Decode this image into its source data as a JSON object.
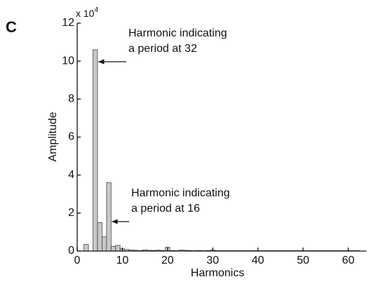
{
  "chart_data": {
    "type": "bar",
    "panel_label": "C",
    "y_multiplier": "x 10",
    "y_multiplier_exponent": "4",
    "x_label": "Harmonics",
    "y_label": "Amplitude",
    "x": [
      1,
      2,
      3,
      4,
      5,
      6,
      7,
      8,
      9,
      10,
      11,
      12,
      13,
      14,
      15,
      16,
      17,
      18,
      19,
      20,
      21,
      22,
      23,
      24,
      25,
      26,
      27,
      28,
      29,
      30,
      31,
      32,
      33,
      34,
      35,
      36,
      37,
      38,
      39,
      40,
      41,
      42,
      43,
      44,
      45,
      46,
      47,
      48,
      49,
      50,
      51,
      52,
      53,
      54,
      55,
      56,
      57,
      58,
      59,
      60,
      61,
      62
    ],
    "values": [
      0,
      0.35,
      0,
      10.6,
      1.5,
      0.75,
      3.6,
      0.25,
      0.3,
      0.12,
      0.08,
      0.05,
      0.04,
      0.03,
      0.06,
      0.04,
      0.03,
      0.05,
      0.03,
      0.2,
      0.03,
      0.02,
      0.05,
      0.04,
      0.03,
      0.02,
      0.03,
      0.02,
      0.03,
      0.05,
      0.02,
      0.02,
      0.02,
      0.02,
      0.02,
      0.02,
      0.02,
      0.02,
      0.02,
      0.02,
      0.02,
      0.02,
      0.02,
      0.02,
      0.02,
      0.02,
      0.02,
      0.02,
      0.02,
      0.02,
      0.02,
      0.02,
      0.02,
      0.02,
      0.02,
      0.02,
      0.02,
      0.02,
      0.02,
      0.02,
      0.02,
      0.02
    ],
    "color": "#c8c8c8",
    "xlim": [
      0,
      64
    ],
    "xticks": [
      0,
      10,
      20,
      30,
      40,
      50,
      60
    ],
    "ylim": [
      0,
      12
    ],
    "yticks": [
      0,
      2,
      4,
      6,
      8,
      10,
      12
    ],
    "annotations": [
      {
        "lines": [
          "Harmonic indicating",
          "a period at 32"
        ],
        "x": 4,
        "y": 10.6
      },
      {
        "lines": [
          "Harmonic indicating",
          "a period at 16"
        ],
        "x": 7,
        "y": 2.6
      }
    ]
  }
}
